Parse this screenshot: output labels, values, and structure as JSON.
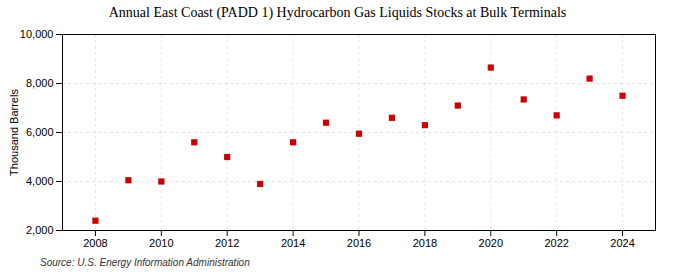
{
  "chart_data": {
    "type": "scatter",
    "title": "Annual East Coast (PADD 1) Hydrocarbon Gas Liquids Stocks at Bulk Terminals",
    "ylabel": "Thousand Barrels",
    "source": "Source: U.S. Energy Information Administration",
    "x": [
      2008,
      2009,
      2010,
      2011,
      2012,
      2013,
      2014,
      2015,
      2016,
      2017,
      2018,
      2019,
      2020,
      2021,
      2022,
      2023,
      2024
    ],
    "values": [
      2400,
      4050,
      4000,
      5600,
      5000,
      3900,
      5600,
      6400,
      5950,
      6600,
      6300,
      7100,
      8650,
      7350,
      6700,
      8200,
      7500
    ],
    "color": "#cc0000",
    "marker": "square",
    "xlim": [
      2007,
      2025
    ],
    "xticks": [
      2008,
      2010,
      2012,
      2014,
      2016,
      2018,
      2020,
      2022,
      2024
    ],
    "ylim": [
      2000,
      10000
    ],
    "yticks": [
      {
        "value": 2000,
        "label": "2,000"
      },
      {
        "value": 4000,
        "label": "4,000"
      },
      {
        "value": 6000,
        "label": "6,000"
      },
      {
        "value": 8000,
        "label": "8,000"
      },
      {
        "value": 10000,
        "label": "10,000"
      }
    ],
    "grid": true
  }
}
